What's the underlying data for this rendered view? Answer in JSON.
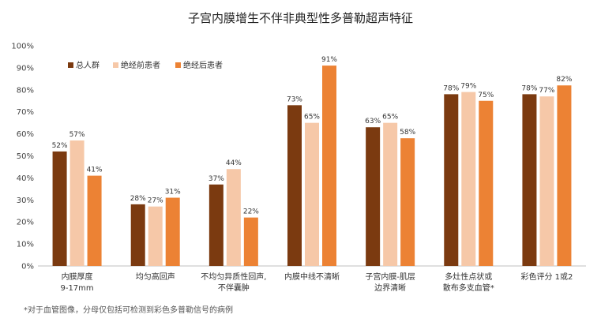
{
  "chart_data": {
    "type": "bar",
    "title": "子宫内膜增生不伴非典型性多普勒超声特征",
    "categories": [
      [
        "内膜厚度",
        "9-17mm"
      ],
      [
        "均匀高回声"
      ],
      [
        "不均匀异质性回声,",
        "不伴囊肿"
      ],
      [
        "内膜中线不清晰"
      ],
      [
        "子宫内膜-肌层",
        "边界清晰"
      ],
      [
        "多灶性点状或",
        "散布多支血管*"
      ],
      [
        "彩色评分 1或2"
      ]
    ],
    "series": [
      {
        "name": "总人群",
        "color": "#7b3a10",
        "values": [
          52,
          28,
          37,
          73,
          63,
          78,
          78
        ]
      },
      {
        "name": "绝经前患者",
        "color": "#f6c8a8",
        "values": [
          57,
          27,
          44,
          65,
          65,
          79,
          77
        ]
      },
      {
        "name": "绝经后患者",
        "color": "#ec8234",
        "values": [
          41,
          31,
          22,
          91,
          58,
          75,
          82
        ]
      }
    ],
    "ylim": [
      0,
      100
    ],
    "yticks": [
      0,
      10,
      20,
      30,
      40,
      50,
      60,
      70,
      80,
      90,
      100
    ],
    "ytick_suffix": "%",
    "value_suffix": "%",
    "legend_position": "top-left",
    "grid": false,
    "footnote": "*对于血管图像，分母仅包括可检测到彩色多普勒信号的病例"
  }
}
